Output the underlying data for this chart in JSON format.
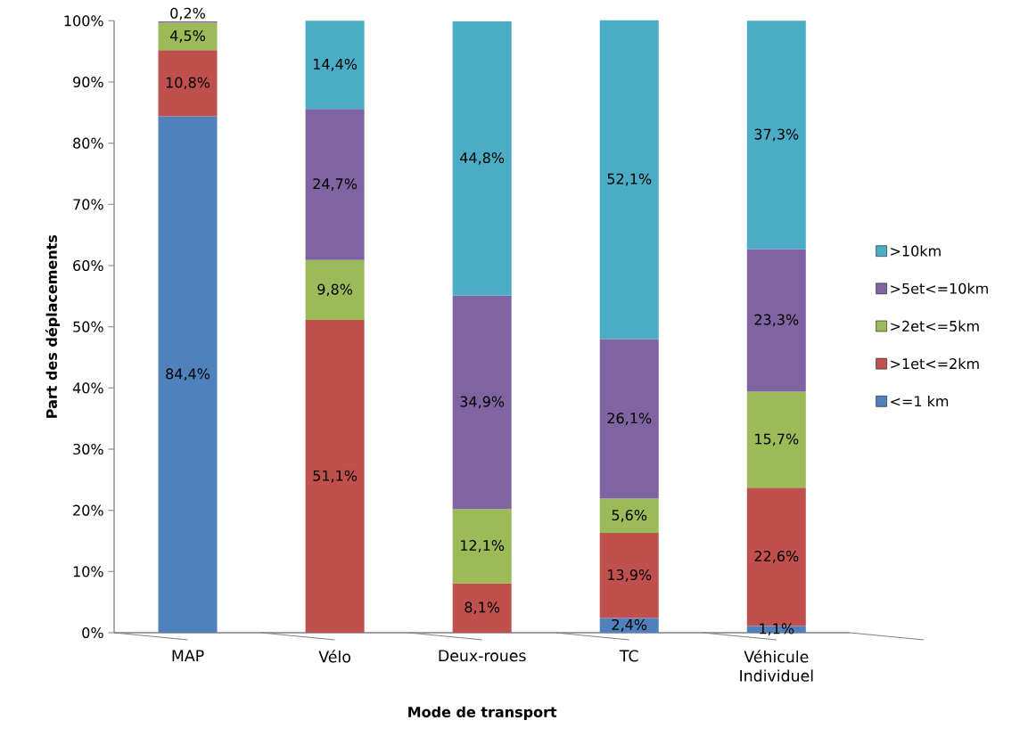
{
  "chart_data": {
    "type": "bar",
    "stacked": true,
    "xlabel": "Mode de transport",
    "ylabel": "Part des déplacements",
    "categories": [
      "MAP",
      "Vélo",
      "Deux-roues",
      "TC",
      "Véhicule Individuel"
    ],
    "ylim": [
      0,
      100
    ],
    "yticks": [
      {
        "value": 0,
        "label": "0%"
      },
      {
        "value": 10,
        "label": "10%"
      },
      {
        "value": 20,
        "label": "20%"
      },
      {
        "value": 30,
        "label": "30%"
      },
      {
        "value": 40,
        "label": "40%"
      },
      {
        "value": 50,
        "label": "50%"
      },
      {
        "value": 60,
        "label": "60%"
      },
      {
        "value": 70,
        "label": "70%"
      },
      {
        "value": 80,
        "label": "80%"
      },
      {
        "value": 90,
        "label": "90%"
      },
      {
        "value": 100,
        "label": "100%"
      }
    ],
    "legend": "right",
    "grid": false,
    "series": [
      {
        "name": "<=1 km",
        "color": "#4f81bd",
        "values": [
          84.4,
          null,
          null,
          2.4,
          1.1
        ],
        "value_labels": [
          "84,4%",
          null,
          null,
          "2,4%",
          "1,1%"
        ]
      },
      {
        "name": ">1et<=2km",
        "color": "#c0504d",
        "values": [
          10.8,
          51.1,
          8.1,
          13.9,
          22.6
        ],
        "value_labels": [
          "10,8%",
          "51,1%",
          "8,1%",
          "13,9%",
          "22,6%"
        ]
      },
      {
        "name": ">2et<=5km",
        "color": "#9bbb59",
        "values": [
          4.5,
          9.8,
          12.1,
          5.6,
          15.7
        ],
        "value_labels": [
          "4,5%",
          "9,8%",
          "12,1%",
          "5,6%",
          "15,7%"
        ]
      },
      {
        "name": ">5et<=10km",
        "color": "#8064a2",
        "values": [
          0.2,
          24.7,
          34.9,
          26.1,
          23.3
        ],
        "value_labels": [
          "0,2%",
          "24,7%",
          "34,9%",
          "26,1%",
          "23,3%"
        ]
      },
      {
        "name": ">10km",
        "color": "#4bacc6",
        "values": [
          null,
          14.4,
          44.8,
          52.1,
          37.3
        ],
        "value_labels": [
          null,
          "14,4%",
          "44,8%",
          "52,1%",
          "37,3%"
        ]
      }
    ]
  }
}
